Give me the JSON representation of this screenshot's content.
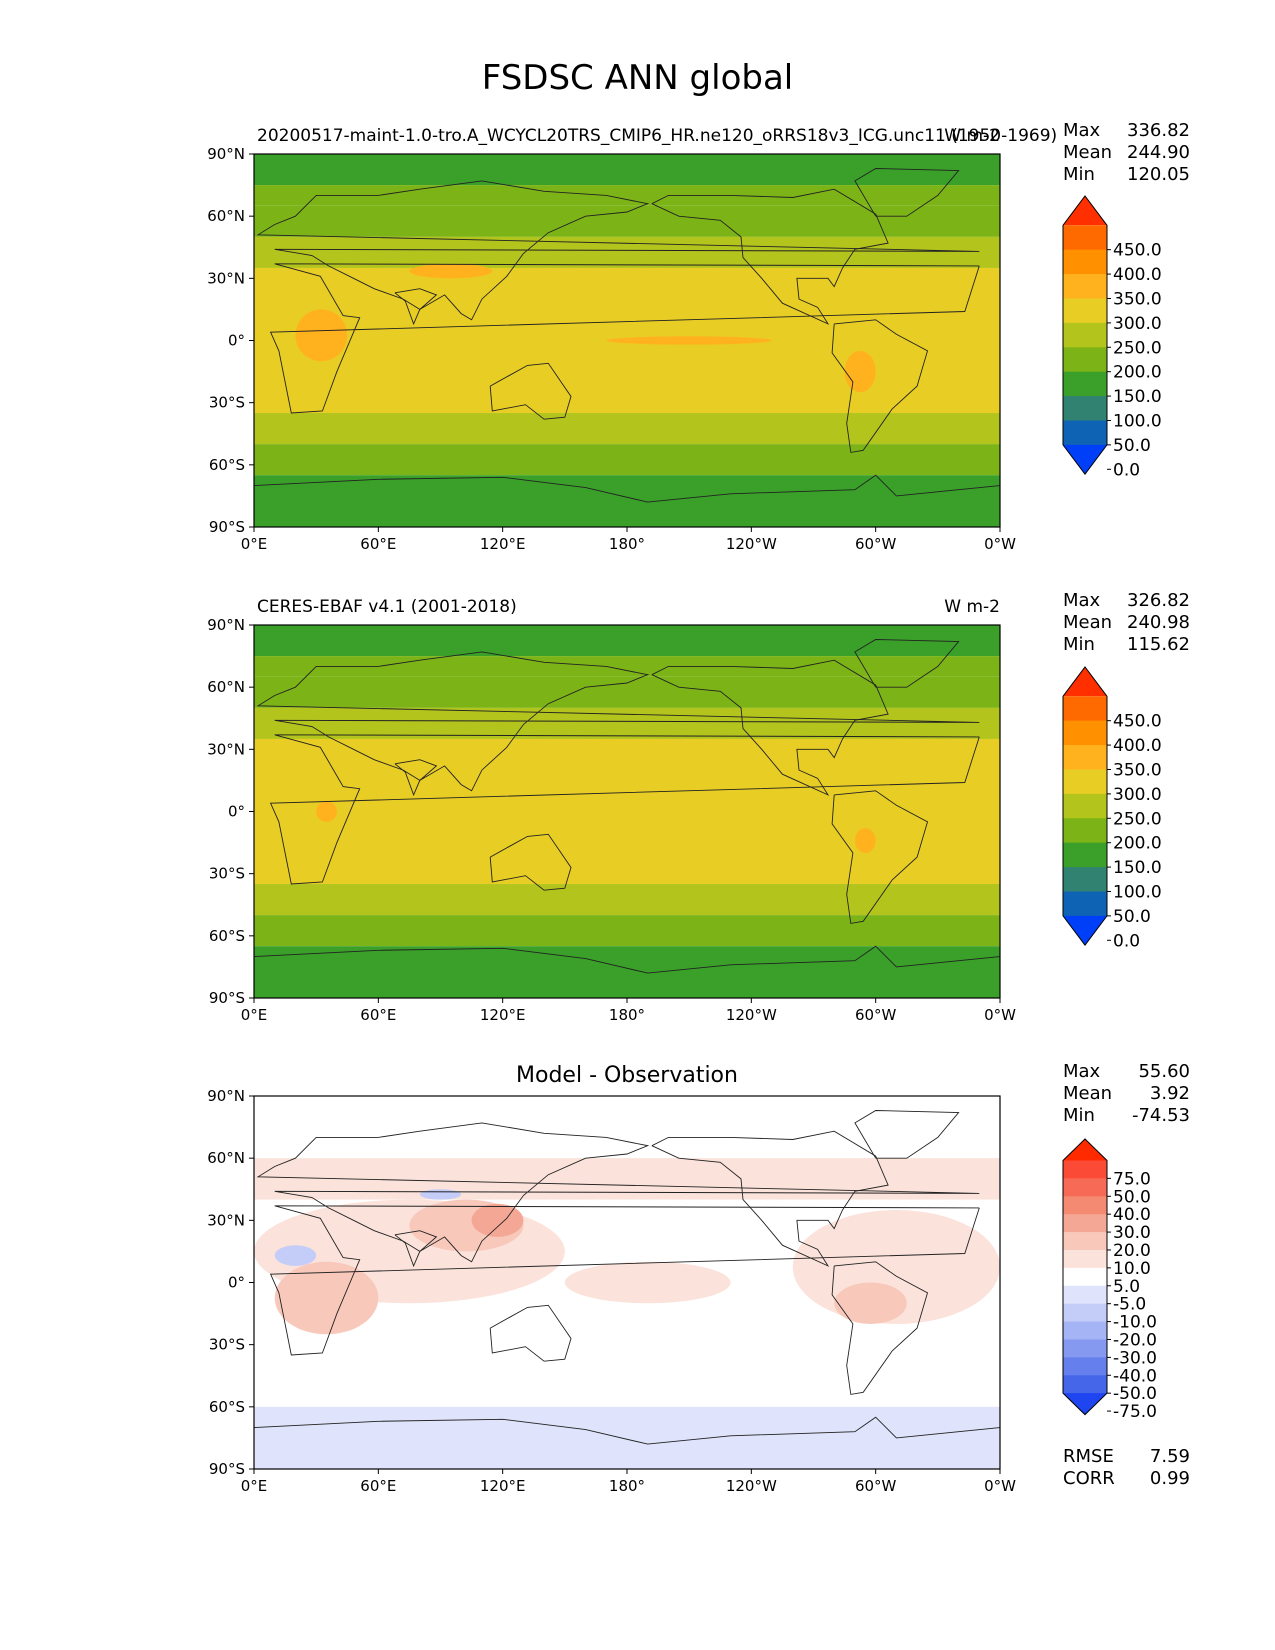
{
  "figure": {
    "title": "FSDSC ANN global"
  },
  "chart_data": [
    {
      "type": "heatmap",
      "left_title": "20200517-maint-1.0-tro.A_WCYCL20TRS_CMIP6_HR.ne120_oRRS18v3_ICG.unc11 (1950-1969)",
      "right_title": "W m-2",
      "stats": {
        "max_label": "Max",
        "max": "336.82",
        "mean_label": "Mean",
        "mean": "244.90",
        "min_label": "Min",
        "min": "120.05"
      },
      "colorbar": {
        "tick_labels": [
          "450.0",
          "400.0",
          "350.0",
          "300.0",
          "250.0",
          "200.0",
          "150.0",
          "100.0",
          "50.0",
          "0.0"
        ],
        "colors": [
          "#ff2f00",
          "#ff6a00",
          "#ff9000",
          "#ffb21e",
          "#e8cd25",
          "#b3c41d",
          "#7cb418",
          "#3aa02a",
          "#328271",
          "#0f63b5",
          "#003ff8"
        ]
      },
      "x_tick_labels": [
        "0°E",
        "60°E",
        "120°E",
        "180°",
        "120°W",
        "60°W",
        "0°W"
      ],
      "y_tick_labels": [
        "90°N",
        "60°N",
        "30°N",
        "0°",
        "30°S",
        "60°S",
        "90°S"
      ],
      "xlim": [
        0,
        360
      ],
      "ylim": [
        -90,
        90
      ],
      "zonal_bands": [
        {
          "lat": [
            90,
            75
          ],
          "value": 130
        },
        {
          "lat": [
            75,
            65
          ],
          "value": 160
        },
        {
          "lat": [
            65,
            50
          ],
          "value": 185
        },
        {
          "lat": [
            50,
            35
          ],
          "value": 225
        },
        {
          "lat": [
            35,
            -35
          ],
          "value": 270
        },
        {
          "lat": [
            -35,
            -50
          ],
          "value": 225
        },
        {
          "lat": [
            -50,
            -65
          ],
          "value": 175
        },
        {
          "lat": [
            -65,
            -90
          ],
          "value": 130
        }
      ],
      "features": [
        {
          "lon": [
            170,
            250
          ],
          "lat": [
            2,
            -2
          ],
          "value": 310
        },
        {
          "lon": [
            20,
            45
          ],
          "lat": [
            15,
            -10
          ],
          "value": 310
        },
        {
          "lon": [
            75,
            115
          ],
          "lat": [
            37,
            30
          ],
          "value": 310
        },
        {
          "lon": [
            285,
            300
          ],
          "lat": [
            -5,
            -25
          ],
          "value": 310
        }
      ]
    },
    {
      "type": "heatmap",
      "left_title": "CERES-EBAF v4.1 (2001-2018)",
      "right_title": "W m-2",
      "stats": {
        "max_label": "Max",
        "max": "326.82",
        "mean_label": "Mean",
        "mean": "240.98",
        "min_label": "Min",
        "min": "115.62"
      },
      "colorbar": {
        "tick_labels": [
          "450.0",
          "400.0",
          "350.0",
          "300.0",
          "250.0",
          "200.0",
          "150.0",
          "100.0",
          "50.0",
          "0.0"
        ],
        "colors": [
          "#ff2f00",
          "#ff6a00",
          "#ff9000",
          "#ffb21e",
          "#e8cd25",
          "#b3c41d",
          "#7cb418",
          "#3aa02a",
          "#328271",
          "#0f63b5",
          "#003ff8"
        ]
      },
      "x_tick_labels": [
        "0°E",
        "60°E",
        "120°E",
        "180°",
        "120°W",
        "60°W",
        "0°W"
      ],
      "y_tick_labels": [
        "90°N",
        "60°N",
        "30°N",
        "0°",
        "30°S",
        "60°S",
        "90°S"
      ],
      "xlim": [
        0,
        360
      ],
      "ylim": [
        -90,
        90
      ],
      "zonal_bands": [
        {
          "lat": [
            90,
            75
          ],
          "value": 130
        },
        {
          "lat": [
            75,
            65
          ],
          "value": 160
        },
        {
          "lat": [
            65,
            50
          ],
          "value": 185
        },
        {
          "lat": [
            50,
            35
          ],
          "value": 225
        },
        {
          "lat": [
            35,
            -35
          ],
          "value": 270
        },
        {
          "lat": [
            -35,
            -50
          ],
          "value": 225
        },
        {
          "lat": [
            -50,
            -65
          ],
          "value": 175
        },
        {
          "lat": [
            -65,
            -90
          ],
          "value": 130
        }
      ],
      "features": [
        {
          "lon": [
            290,
            300
          ],
          "lat": [
            -8,
            -20
          ],
          "value": 310
        },
        {
          "lon": [
            30,
            40
          ],
          "lat": [
            5,
            -5
          ],
          "value": 310
        }
      ]
    },
    {
      "type": "heatmap",
      "title": "Model - Observation",
      "stats": {
        "max_label": "Max",
        "max": "55.60",
        "mean_label": "Mean",
        "mean": "3.92",
        "min_label": "Min",
        "min": "-74.53"
      },
      "colorbar": {
        "tick_labels": [
          "75.0",
          "50.0",
          "40.0",
          "30.0",
          "20.0",
          "10.0",
          "5.0",
          "-5.0",
          "-10.0",
          "-20.0",
          "-30.0",
          "-40.0",
          "-50.0",
          "-75.0"
        ],
        "colors": [
          "#ff2a00",
          "#fb4a36",
          "#f76a55",
          "#f58a73",
          "#f5a795",
          "#f8c8bb",
          "#fbe2da",
          "#ffffff",
          "#dfe3fb",
          "#c3cdf8",
          "#a5b4f4",
          "#8599f0",
          "#6580ec",
          "#4566e9",
          "#1f45f0"
        ]
      },
      "x_tick_labels": [
        "0°E",
        "60°E",
        "120°E",
        "180°",
        "120°W",
        "60°W",
        "0°W"
      ],
      "y_tick_labels": [
        "90°N",
        "60°N",
        "30°N",
        "0°",
        "30°S",
        "60°S",
        "90°S"
      ],
      "xlim": [
        0,
        360
      ],
      "ylim": [
        -90,
        90
      ],
      "regions": [
        {
          "lon": [
            0,
            360
          ],
          "lat": [
            -60,
            -90
          ],
          "value": -7
        },
        {
          "lon": [
            0,
            360
          ],
          "lat": [
            60,
            40
          ],
          "value": 7
        },
        {
          "lon": [
            0,
            150
          ],
          "lat": [
            40,
            -10
          ],
          "value": 7
        },
        {
          "lon": [
            150,
            230
          ],
          "lat": [
            10,
            -10
          ],
          "value": 7
        },
        {
          "lon": [
            260,
            360
          ],
          "lat": [
            35,
            -20
          ],
          "value": 7
        },
        {
          "lon": [
            10,
            60
          ],
          "lat": [
            10,
            -25
          ],
          "value": 15
        },
        {
          "lon": [
            75,
            130
          ],
          "lat": [
            40,
            15
          ],
          "value": 15
        },
        {
          "lon": [
            280,
            315
          ],
          "lat": [
            0,
            -20
          ],
          "value": 15
        },
        {
          "lon": [
            105,
            130
          ],
          "lat": [
            38,
            22
          ],
          "value": 25
        },
        {
          "lon": [
            10,
            30
          ],
          "lat": [
            18,
            8
          ],
          "value": -12
        },
        {
          "lon": [
            80,
            100
          ],
          "lat": [
            45,
            40
          ],
          "value": -12
        }
      ],
      "extra_stats": {
        "rmse_label": "RMSE",
        "rmse": "7.59",
        "corr_label": "CORR",
        "corr": "0.99"
      }
    }
  ]
}
